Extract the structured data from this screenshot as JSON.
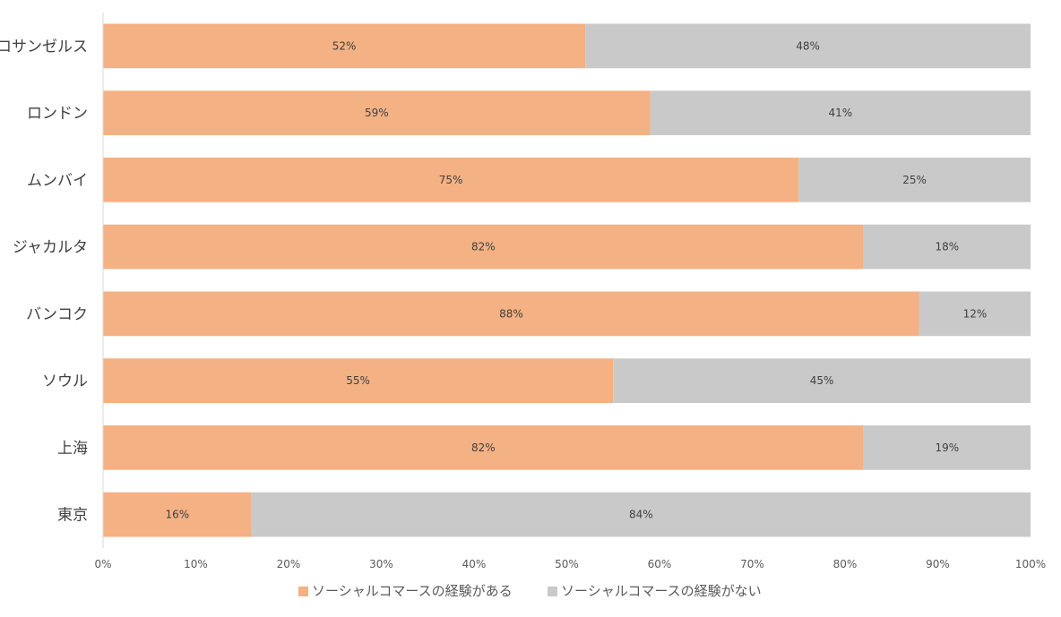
{
  "chart_data": {
    "type": "bar",
    "orientation": "horizontal",
    "stacked": true,
    "categories": [
      "ロサンゼルス",
      "ロンドン",
      "ムンバイ",
      "ジャカルタ",
      "バンコク",
      "ソウル",
      "上海",
      "東京"
    ],
    "series": [
      {
        "name": "ソーシャルコマースの経験がある",
        "color": "#F4B183",
        "values": [
          52,
          59,
          75,
          82,
          88,
          55,
          82,
          16
        ],
        "labels": [
          "52%",
          "59%",
          "75%",
          "82%",
          "88%",
          "55%",
          "82%",
          "16%"
        ]
      },
      {
        "name": "ソーシャルコマースの経験がない",
        "color": "#C9C9C9",
        "values": [
          48,
          41,
          25,
          18,
          12,
          45,
          19,
          84
        ],
        "labels": [
          "48%",
          "41%",
          "25%",
          "18%",
          "12%",
          "45%",
          "19%",
          "84%"
        ]
      }
    ],
    "xlim": [
      0,
      100
    ],
    "xticks": [
      "0%",
      "10%",
      "20%",
      "30%",
      "40%",
      "50%",
      "60%",
      "70%",
      "80%",
      "90%",
      "100%"
    ],
    "title": "",
    "xlabel": "",
    "ylabel": "",
    "grid": false,
    "legend_position": "bottom"
  }
}
